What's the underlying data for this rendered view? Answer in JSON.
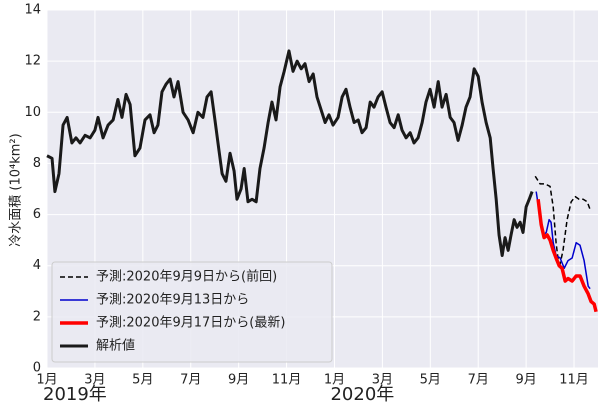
{
  "chart_data": {
    "type": "line",
    "y_label": "冷水面積 (10⁴km²)",
    "xlim": [
      0,
      23
    ],
    "ylim": [
      0,
      14
    ],
    "yticks": [
      0,
      2,
      4,
      6,
      8,
      10,
      12,
      14
    ],
    "xticks": [
      {
        "value": 0,
        "label": "1月"
      },
      {
        "value": 2,
        "label": "3月"
      },
      {
        "value": 4,
        "label": "5月"
      },
      {
        "value": 6,
        "label": "7月"
      },
      {
        "value": 8,
        "label": "9月"
      },
      {
        "value": 10,
        "label": "11月"
      },
      {
        "value": 12,
        "label": "1月"
      },
      {
        "value": 14,
        "label": "3月"
      },
      {
        "value": 16,
        "label": "5月"
      },
      {
        "value": 18,
        "label": "7月"
      },
      {
        "value": 20,
        "label": "9月"
      },
      {
        "value": 22,
        "label": "11月"
      }
    ],
    "year_labels": [
      {
        "text": "2019年",
        "x": 0
      },
      {
        "text": "2020年",
        "x": 12
      }
    ],
    "grid": true,
    "legend": "lower left",
    "series": [
      {
        "name": "予測:2020年9月9日から(前回)",
        "color": "#000000",
        "dash": true,
        "width": 1.5,
        "x": [
          20.38,
          20.58,
          20.79,
          21.0,
          21.13,
          21.25,
          21.38,
          21.54,
          21.71,
          21.88,
          22.05,
          22.21,
          22.38,
          22.55,
          22.67
        ],
        "values": [
          7.5,
          7.2,
          7.2,
          7.1,
          6.3,
          4.9,
          3.9,
          4.6,
          5.8,
          6.5,
          6.7,
          6.6,
          6.6,
          6.5,
          6.2
        ]
      },
      {
        "name": "予測:2020年9月13日から",
        "color": "#0000cc",
        "dash": false,
        "width": 1.5,
        "x": [
          20.42,
          20.58,
          20.71,
          20.84,
          20.96,
          21.04,
          21.13,
          21.25,
          21.42,
          21.59,
          21.75,
          21.92,
          22.09,
          22.25,
          22.42,
          22.59,
          22.67
        ],
        "values": [
          6.9,
          5.9,
          5.2,
          5.3,
          5.8,
          5.7,
          4.9,
          4.4,
          4.3,
          3.9,
          4.2,
          4.3,
          4.9,
          4.8,
          4.2,
          3.2,
          3.1
        ]
      },
      {
        "name": "予測:2020年9月17日から(最新)",
        "color": "#ff0000",
        "dash": false,
        "width": 3.5,
        "x": [
          20.5,
          20.63,
          20.75,
          20.88,
          21.0,
          21.13,
          21.25,
          21.38,
          21.5,
          21.63,
          21.75,
          21.92,
          22.09,
          22.25,
          22.42,
          22.59,
          22.71,
          22.84,
          22.92
        ],
        "values": [
          6.6,
          5.6,
          5.1,
          5.2,
          5.0,
          4.6,
          4.3,
          4.0,
          3.9,
          3.4,
          3.5,
          3.4,
          3.6,
          3.6,
          3.2,
          2.9,
          2.6,
          2.5,
          2.2
        ]
      },
      {
        "name": "解析値",
        "color": "#1a1a1a",
        "dash": false,
        "width": 3,
        "x": [
          0,
          0.21,
          0.33,
          0.5,
          0.67,
          0.84,
          1.04,
          1.21,
          1.38,
          1.59,
          1.8,
          2.0,
          2.13,
          2.34,
          2.55,
          2.76,
          2.96,
          3.13,
          3.3,
          3.47,
          3.67,
          3.88,
          4.09,
          4.3,
          4.47,
          4.63,
          4.8,
          4.97,
          5.14,
          5.3,
          5.47,
          5.68,
          5.89,
          6.1,
          6.3,
          6.51,
          6.68,
          6.85,
          7.01,
          7.18,
          7.31,
          7.47,
          7.64,
          7.81,
          7.93,
          8.1,
          8.23,
          8.39,
          8.56,
          8.73,
          8.89,
          9.06,
          9.23,
          9.39,
          9.56,
          9.73,
          9.9,
          10.1,
          10.27,
          10.44,
          10.61,
          10.77,
          10.94,
          11.11,
          11.27,
          11.44,
          11.61,
          11.77,
          11.94,
          12.15,
          12.32,
          12.48,
          12.65,
          12.82,
          12.99,
          13.15,
          13.32,
          13.49,
          13.65,
          13.82,
          13.99,
          14.15,
          14.32,
          14.49,
          14.66,
          14.82,
          14.99,
          15.16,
          15.32,
          15.49,
          15.66,
          15.82,
          15.99,
          16.16,
          16.33,
          16.49,
          16.66,
          16.83,
          16.99,
          17.16,
          17.33,
          17.49,
          17.66,
          17.83,
          18.0,
          18.16,
          18.33,
          18.5,
          18.62,
          18.75,
          18.87,
          19.0,
          19.12,
          19.25,
          19.37,
          19.5,
          19.62,
          19.75,
          19.87,
          20.0,
          20.13,
          20.25
        ],
        "values": [
          8.3,
          8.2,
          6.9,
          7.6,
          9.5,
          9.8,
          8.8,
          9.0,
          8.8,
          9.1,
          9.0,
          9.3,
          9.8,
          9.0,
          9.5,
          9.7,
          10.5,
          9.8,
          10.7,
          10.3,
          8.3,
          8.6,
          9.7,
          9.9,
          9.2,
          9.5,
          10.8,
          11.1,
          11.3,
          10.6,
          11.2,
          10.0,
          9.7,
          9.2,
          10.0,
          9.8,
          10.6,
          10.8,
          9.7,
          8.5,
          7.6,
          7.3,
          8.4,
          7.7,
          6.6,
          7.0,
          7.8,
          6.5,
          6.6,
          6.5,
          7.8,
          8.6,
          9.6,
          10.4,
          9.7,
          11.0,
          11.6,
          12.4,
          11.6,
          12.0,
          11.7,
          11.9,
          11.2,
          11.5,
          10.6,
          10.1,
          9.6,
          9.9,
          9.5,
          9.8,
          10.6,
          10.9,
          10.2,
          9.6,
          9.7,
          9.2,
          9.4,
          10.4,
          10.2,
          10.6,
          10.8,
          10.2,
          9.6,
          9.4,
          9.9,
          9.3,
          9.0,
          9.2,
          8.8,
          9.0,
          9.6,
          10.4,
          10.9,
          10.2,
          11.2,
          10.2,
          10.7,
          9.8,
          9.6,
          8.9,
          9.5,
          10.2,
          10.6,
          11.7,
          11.4,
          10.4,
          9.6,
          9.0,
          7.8,
          6.6,
          5.2,
          4.4,
          5.1,
          4.6,
          5.2,
          5.8,
          5.5,
          5.7,
          5.3,
          6.3,
          6.6,
          6.9
        ]
      }
    ]
  }
}
